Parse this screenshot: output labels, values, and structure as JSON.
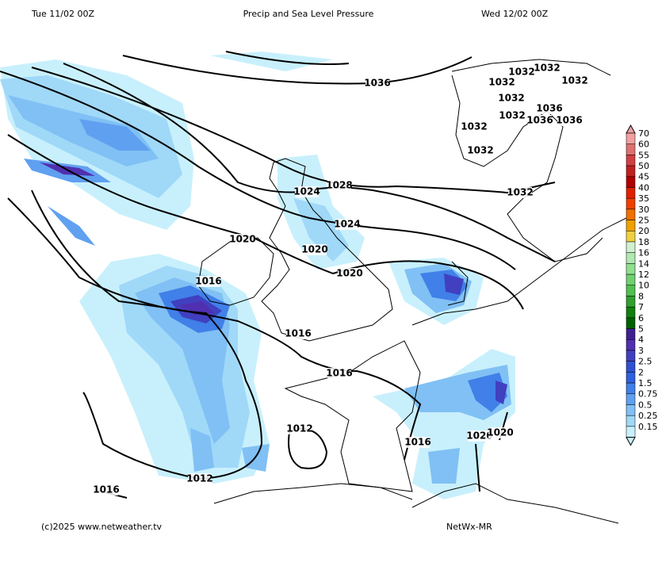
{
  "header": {
    "left": "Tue 11/02 00Z",
    "title": "Precip and Sea Level Pressure",
    "right": "Wed 12/02 00Z"
  },
  "footer": {
    "left": "(c)2025 www.netweather.tv",
    "right": "NetWx-MR"
  },
  "isobar_labels": [
    "1036",
    "1032",
    "1032",
    "1032",
    "1032",
    "1032",
    "1032",
    "1032",
    "1036",
    "1036",
    "1036",
    "1032",
    "1032",
    "1028",
    "1024",
    "1024",
    "1020",
    "1020",
    "1020",
    "1016",
    "1016",
    "1016",
    "1016",
    "1016",
    "1012",
    "1012",
    "1020",
    "1020"
  ],
  "legend": {
    "levels": [
      70,
      60,
      55,
      50,
      45,
      40,
      35,
      30,
      25,
      20,
      18,
      16,
      14,
      12,
      10,
      8,
      7,
      6,
      5,
      4,
      3,
      2.5,
      2,
      1.5,
      0.75,
      0.5,
      0.25,
      0.15
    ],
    "colors": [
      "#f0a0a0",
      "#e07070",
      "#d04040",
      "#c02020",
      "#b00000",
      "#e02000",
      "#f04000",
      "#f07000",
      "#f0a000",
      "#f0d040",
      "#d0f0d0",
      "#b0e8b0",
      "#90e090",
      "#70d070",
      "#50c050",
      "#30a030",
      "#108010",
      "#006000",
      "#402090",
      "#5030b0",
      "#4040c0",
      "#3050d0",
      "#3060e0",
      "#4080e8",
      "#60a0f0",
      "#80c0f4",
      "#a0d8f8",
      "#c8f0fc"
    ]
  }
}
